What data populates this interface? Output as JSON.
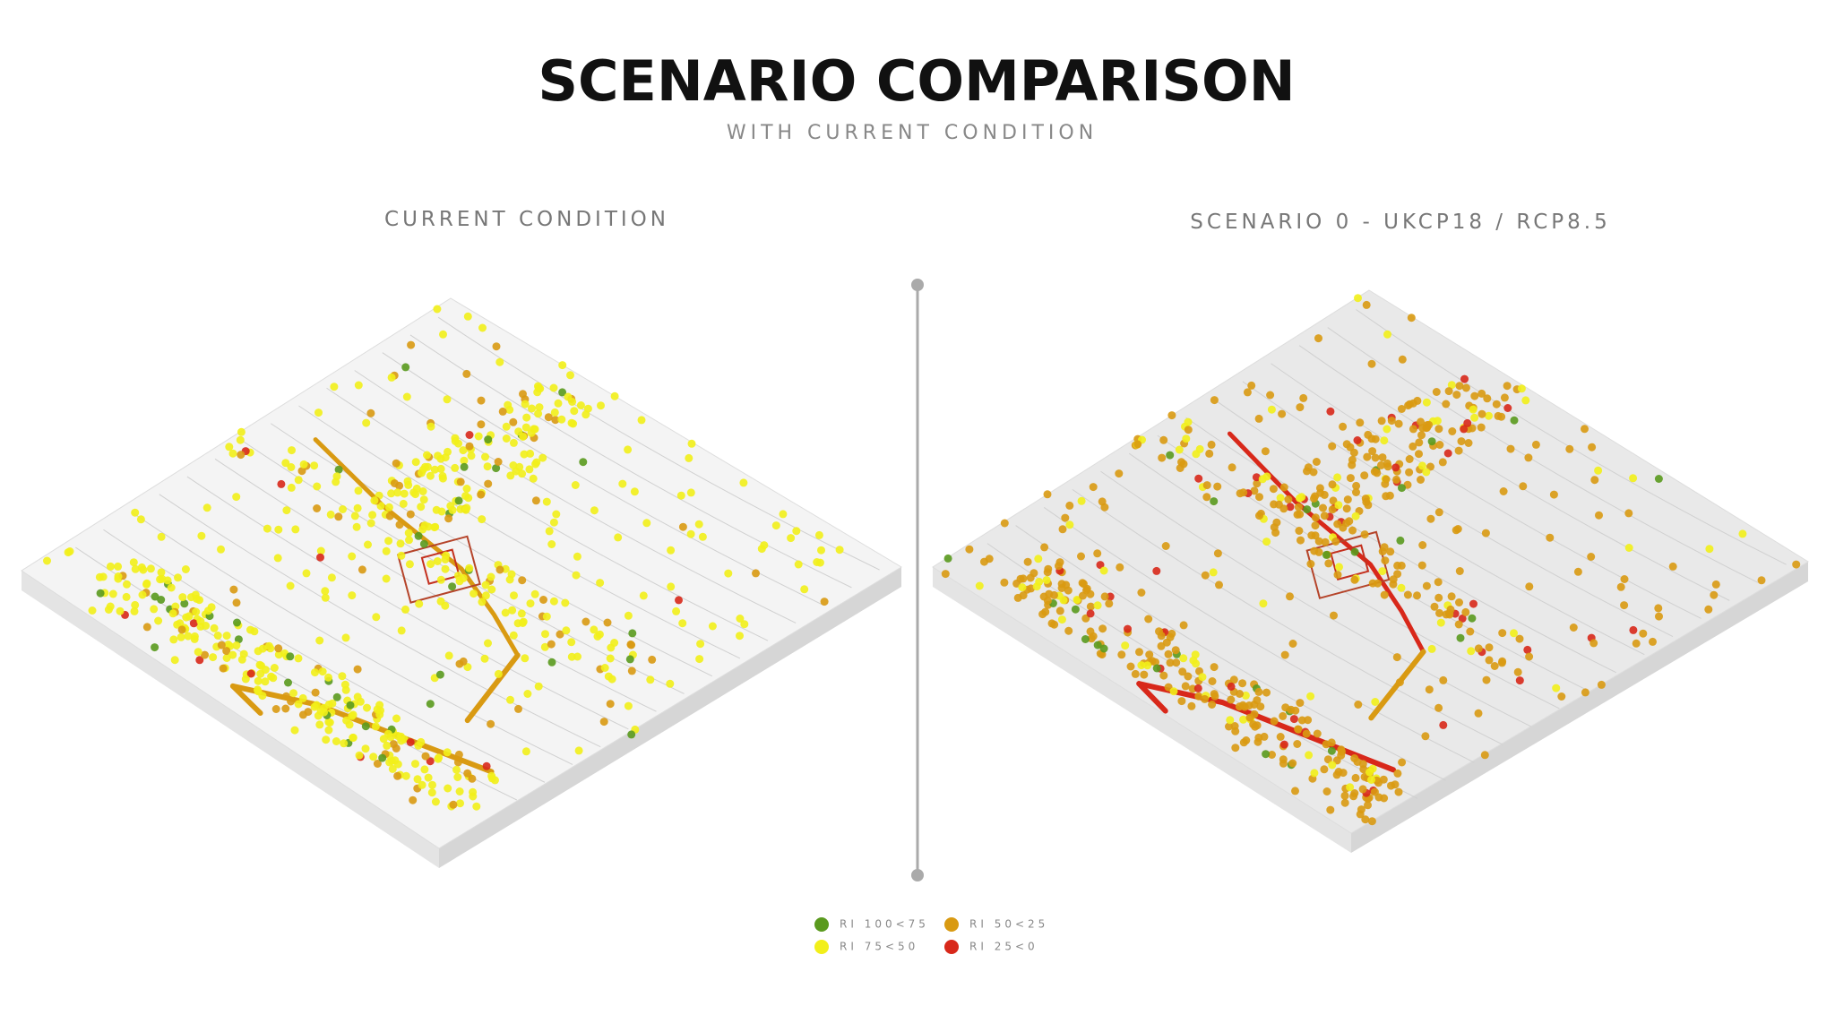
{
  "header": {
    "title": "SCENARIO COMPARISON",
    "subtitle": "WITH CURRENT CONDITION"
  },
  "panels": [
    {
      "label": "CURRENT CONDITION"
    },
    {
      "label": "SCENARIO 0 - UKCP18 / RCP8.5"
    }
  ],
  "legend": {
    "items": [
      {
        "label": "RI 100<75",
        "color": "#5a9a1e"
      },
      {
        "label": "RI 75<50",
        "color": "#f2ef1a"
      },
      {
        "label": "RI 50<25",
        "color": "#d99a12"
      },
      {
        "label": "RI 25<0",
        "color": "#d8281a"
      }
    ]
  }
}
